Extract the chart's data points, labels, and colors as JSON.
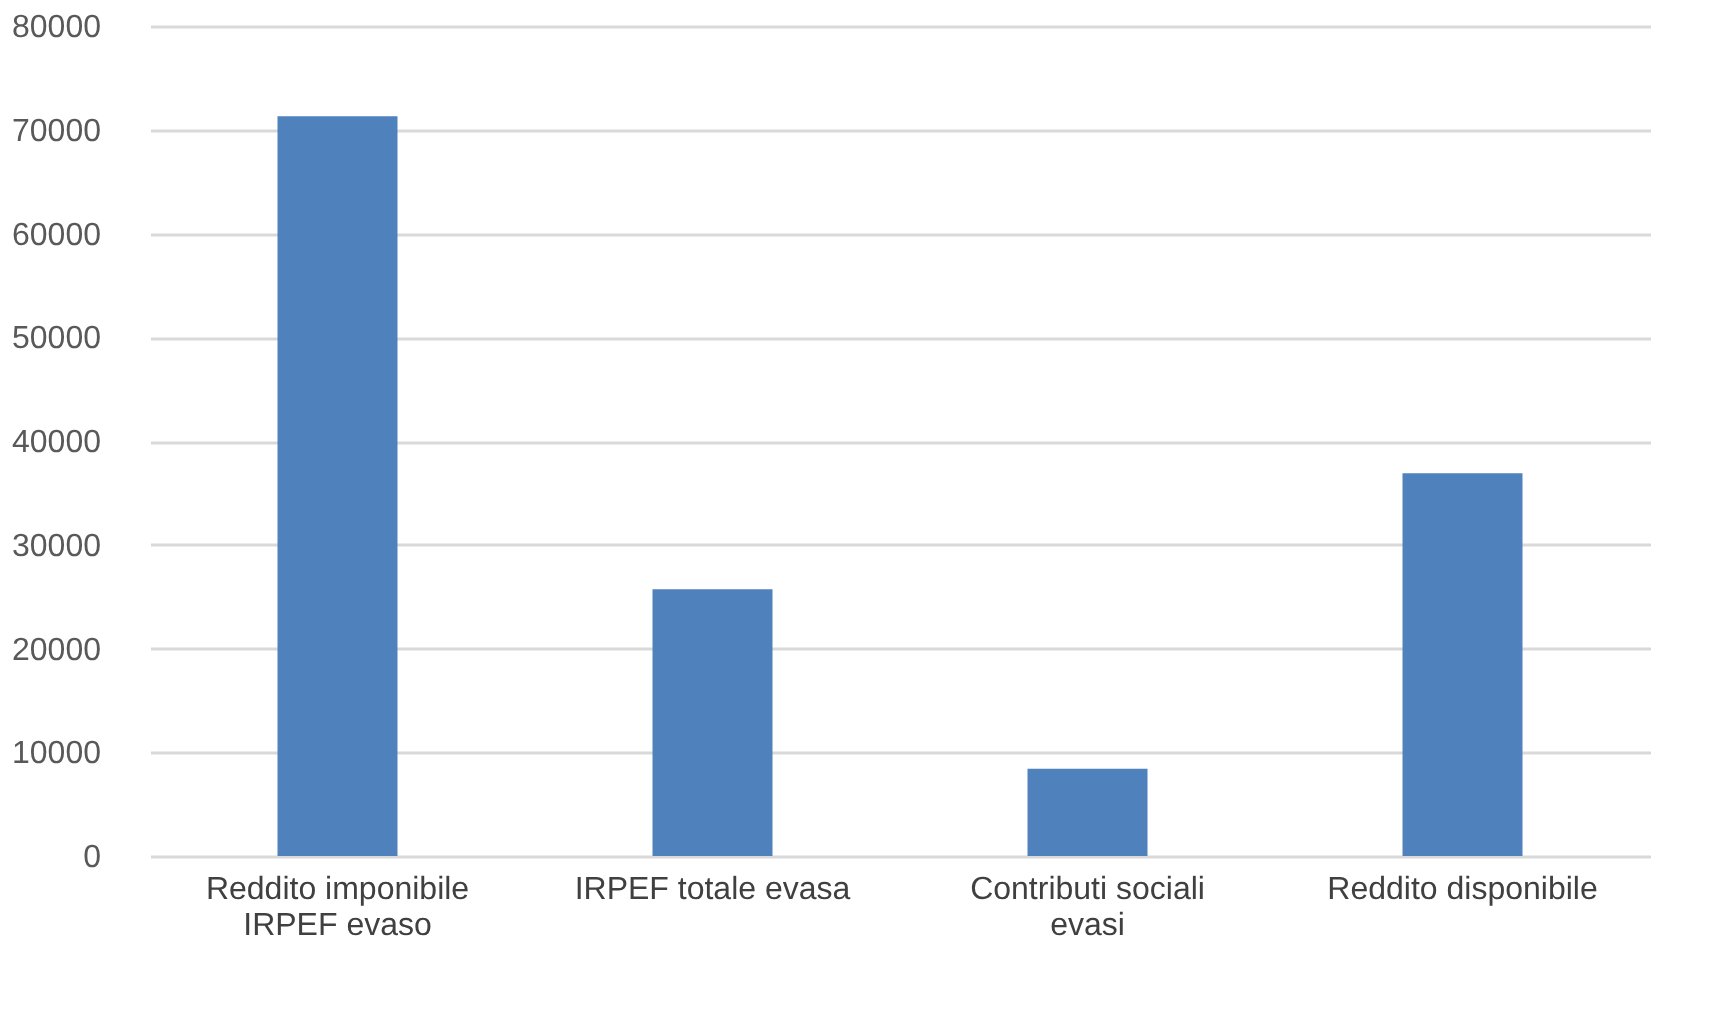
{
  "chart_data": {
    "type": "bar",
    "categories": [
      "Reddito imponibile IRPEF evaso",
      "IRPEF totale evasa",
      "Contributi sociali evasi",
      "Reddito disponibile"
    ],
    "values": [
      71300,
      25700,
      8400,
      36900
    ],
    "color": "#4f81bd",
    "ylim": [
      0,
      80000
    ],
    "yticks": [
      0,
      10000,
      20000,
      30000,
      40000,
      50000,
      60000,
      70000,
      80000
    ],
    "grid": "y"
  }
}
